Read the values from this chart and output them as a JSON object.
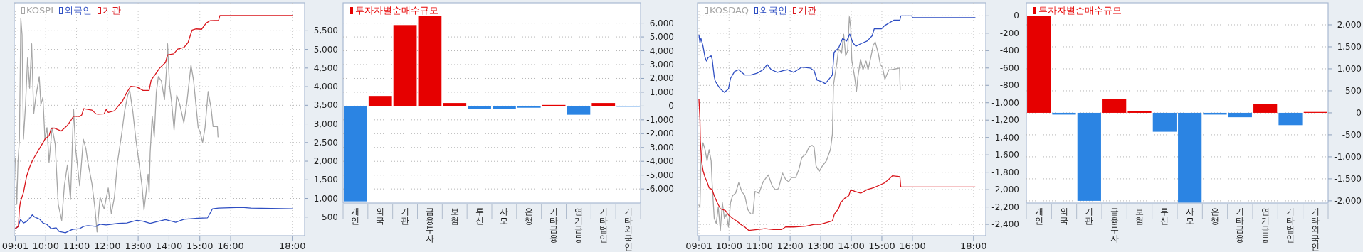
{
  "chart_data": [
    {
      "type": "line",
      "xlim": [
        8.98,
        18.4
      ],
      "ylim": [
        0,
        6250
      ],
      "grid": true,
      "legend": "top left",
      "xticks": [
        {
          "value": 9.0167,
          "label": "09:01"
        },
        {
          "value": 10,
          "label": "10:00"
        },
        {
          "value": 11,
          "label": "11:00"
        },
        {
          "value": 12,
          "label": "12:00"
        },
        {
          "value": 13,
          "label": "13:00"
        },
        {
          "value": 14,
          "label": "14:00"
        },
        {
          "value": 15,
          "label": "15:00"
        },
        {
          "value": 16,
          "label": "16:00"
        },
        {
          "value": 18,
          "label": "18:00"
        }
      ],
      "yticks": [
        500,
        {
          "value": 1000,
          "label": "1,000"
        },
        {
          "value": 1500,
          "label": "1,500"
        },
        {
          "value": 2000,
          "label": "2,000"
        },
        {
          "value": 2500,
          "label": "2,500"
        },
        {
          "value": 3000,
          "label": "3,000"
        },
        {
          "value": 3500,
          "label": "3,500"
        },
        {
          "value": 4000,
          "label": "4,000"
        },
        {
          "value": 4500,
          "label": "4,500"
        },
        {
          "value": 5000,
          "label": "5,000"
        },
        {
          "value": 5500,
          "label": "5,500"
        }
      ],
      "series": [
        {
          "name": "KOSPI",
          "color": "#a6a6a6",
          "x": [
            9.015,
            9.062,
            9.101,
            9.148,
            9.194,
            9.234,
            9.28,
            9.347,
            9.413,
            9.479,
            9.545,
            9.612,
            9.678,
            9.791,
            9.844,
            9.91,
            9.976,
            10.042,
            10.109,
            10.208,
            10.308,
            10.407,
            10.52,
            10.606,
            10.705,
            10.805,
            10.904,
            10.97,
            11.103,
            11.222,
            11.302,
            11.368,
            11.5,
            11.6,
            11.666,
            11.765,
            11.898,
            12.03,
            12.13,
            12.229,
            12.329,
            12.461,
            12.561,
            12.66,
            12.726,
            12.826,
            12.925,
            13.025,
            13.124,
            13.19,
            13.257,
            13.323,
            13.356,
            13.389,
            13.456,
            13.522,
            13.588,
            13.655,
            13.754,
            13.853,
            13.92,
            13.953,
            14.019,
            14.085,
            14.165,
            14.251,
            14.351,
            14.482,
            14.582,
            14.714,
            14.8,
            14.88,
            14.946,
            15.013,
            15.09,
            15.17,
            15.27,
            15.37,
            15.43,
            15.57,
            15.59
          ],
          "values": [
            2090,
            840,
            1970,
            2590,
            5830,
            5390,
            2590,
            3520,
            4770,
            3960,
            5150,
            3270,
            3710,
            4270,
            3520,
            3710,
            2590,
            2900,
            1970,
            2900,
            2460,
            840,
            410,
            1340,
            1900,
            970,
            3400,
            2340,
            1340,
            2590,
            2340,
            1970,
            1400,
            720,
            100,
            1030,
            720,
            1280,
            590,
            1030,
            1970,
            2710,
            3340,
            3770,
            3900,
            3340,
            2590,
            1970,
            1340,
            690,
            1160,
            1650,
            1160,
            2220,
            3210,
            2650,
            3840,
            4270,
            4150,
            3650,
            4460,
            5150,
            4020,
            3590,
            2840,
            3770,
            3520,
            3030,
            3590,
            4580,
            4150,
            3460,
            2900,
            2780,
            2500,
            2900,
            3870,
            3400,
            2930,
            2930,
            2650
          ]
        },
        {
          "name": "외국인",
          "color": "#2e4ec2",
          "x": [
            9.015,
            9.115,
            9.181,
            9.28,
            9.38,
            9.479,
            9.565,
            9.645,
            9.81,
            9.91,
            10.042,
            10.175,
            10.34,
            10.44,
            10.64,
            10.77,
            10.871,
            11.103,
            11.235,
            11.368,
            11.633,
            11.765,
            11.96,
            12.16,
            12.36,
            12.63,
            12.96,
            13.158,
            13.389,
            13.62,
            13.886,
            14.217,
            14.482,
            14.946,
            15.25,
            15.41,
            15.61,
            16.36,
            16.65,
            18.0
          ],
          "values": [
            190,
            250,
            440,
            340,
            380,
            470,
            560,
            500,
            440,
            340,
            300,
            190,
            210,
            110,
            80,
            130,
            170,
            190,
            250,
            270,
            250,
            310,
            290,
            310,
            330,
            340,
            410,
            390,
            330,
            380,
            430,
            360,
            440,
            470,
            480,
            720,
            740,
            760,
            740,
            720
          ]
        },
        {
          "name": "기관",
          "color": "#d9161c",
          "x": [
            9.015,
            9.115,
            9.148,
            9.181,
            9.28,
            9.38,
            9.479,
            9.578,
            9.711,
            9.843,
            9.976,
            10.109,
            10.175,
            10.274,
            10.506,
            10.705,
            10.838,
            10.904,
            11.103,
            11.169,
            11.236,
            11.501,
            11.633,
            11.7,
            11.898,
            11.964,
            12.031,
            12.229,
            12.362,
            12.495,
            12.627,
            12.76,
            12.959,
            13.157,
            13.356,
            13.423,
            13.555,
            13.688,
            13.887,
            13.953,
            14.152,
            14.285,
            14.483,
            14.616,
            14.749,
            14.881,
            15.056,
            15.21,
            15.33,
            15.61,
            15.65,
            18.0
          ],
          "values": [
            190,
            250,
            720,
            910,
            1160,
            1590,
            1840,
            2030,
            2220,
            2400,
            2590,
            2680,
            2870,
            2890,
            2810,
            2960,
            3120,
            3210,
            3200,
            3240,
            3410,
            3370,
            3270,
            3260,
            3270,
            3390,
            3310,
            3350,
            3490,
            3620,
            3840,
            4010,
            3990,
            3900,
            3900,
            4180,
            4330,
            4490,
            4650,
            4850,
            4880,
            5010,
            5050,
            5180,
            5520,
            5550,
            5540,
            5710,
            5770,
            5780,
            5910,
            5910
          ]
        }
      ]
    },
    {
      "type": "bar",
      "grid": "y",
      "legend": "top left",
      "ylim": [
        -7020,
        7470
      ],
      "yticks": [
        {
          "value": -6000,
          "label": "-6,000"
        },
        {
          "value": -5000,
          "label": "-5,000"
        },
        {
          "value": -4000,
          "label": "-4,000"
        },
        {
          "value": -3000,
          "label": "-3,000"
        },
        {
          "value": -2000,
          "label": "-2,000"
        },
        {
          "value": -1000,
          "label": "-1,000"
        },
        0,
        {
          "value": 1000,
          "label": "1,000"
        },
        {
          "value": 2000,
          "label": "2,000"
        },
        {
          "value": 3000,
          "label": "3,000"
        },
        {
          "value": 4000,
          "label": "4,000"
        },
        {
          "value": 5000,
          "label": "5,000"
        },
        {
          "value": 6000,
          "label": "6,000"
        }
      ],
      "categories": [
        "개인",
        "외국",
        "기관",
        "금융투자",
        "보험",
        "투신",
        "사모",
        "은행",
        "기타금융",
        "연기금등",
        "기타법인",
        "기타외국인"
      ],
      "series": [
        {
          "name": "투자자별순매수규모",
          "color": "#e60000",
          "values": [
            -6900,
            730,
            5860,
            6530,
            220,
            -200,
            -200,
            -120,
            80,
            -630,
            220,
            -50
          ],
          "colors": [
            "#2b84e3",
            "#e60000",
            "#e60000",
            "#e60000",
            "#e60000",
            "#2b84e3",
            "#2b84e3",
            "#2b84e3",
            "#e60000",
            "#2b84e3",
            "#e60000",
            "#2b84e3"
          ]
        }
      ]
    },
    {
      "type": "line",
      "xlim": [
        8.97,
        18.4
      ],
      "ylim": [
        -2530,
        150
      ],
      "grid": true,
      "legend": "top left",
      "xticks": [
        {
          "value": 9.017,
          "label": "09:01"
        },
        {
          "value": 10,
          "label": "10:00"
        },
        {
          "value": 11,
          "label": "11:00"
        },
        {
          "value": 12,
          "label": "12:00"
        },
        {
          "value": 13,
          "label": "13:00"
        },
        {
          "value": 14,
          "label": "14:00"
        },
        {
          "value": 15,
          "label": "15:00"
        },
        {
          "value": 16,
          "label": "16:00"
        },
        {
          "value": 18,
          "label": "18:00"
        }
      ],
      "yticks": [
        {
          "value": -2400,
          "label": "-2,400"
        },
        {
          "value": -2200,
          "label": "-2,200"
        },
        {
          "value": -2000,
          "label": "-2,000"
        },
        {
          "value": -1800,
          "label": "-1,800"
        },
        {
          "value": -1600,
          "label": "-1,600"
        },
        {
          "value": -1400,
          "label": "-1,400"
        },
        {
          "value": -1200,
          "label": "-1,200"
        },
        {
          "value": -1000,
          "label": "-1,000"
        },
        -800,
        -600,
        -400,
        -200,
        0
      ],
      "series": [
        {
          "name": "KOSDAQ",
          "color": "#a6a6a6",
          "x": [
            9.017,
            9.05,
            9.083,
            9.15,
            9.217,
            9.283,
            9.35,
            9.417,
            9.45,
            9.517,
            9.583,
            9.65,
            9.717,
            9.783,
            9.85,
            9.917,
            9.983,
            10.05,
            10.117,
            10.217,
            10.317,
            10.417,
            10.517,
            10.617,
            10.717,
            10.783,
            10.85,
            10.983,
            11.117,
            11.283,
            11.417,
            11.517,
            11.617,
            11.75,
            11.85,
            11.95,
            12.05,
            12.183,
            12.283,
            12.383,
            12.517,
            12.617,
            12.717,
            12.783,
            12.85,
            12.95,
            13.05,
            13.183,
            13.317,
            13.383,
            13.417,
            13.45,
            13.53,
            13.583,
            13.683,
            13.75,
            13.817,
            13.883,
            13.937,
            13.983,
            14.017,
            14.117,
            14.17,
            14.217,
            14.303,
            14.383,
            14.483,
            14.55,
            14.65,
            14.717,
            14.783,
            14.883,
            14.95,
            15.02,
            15.1,
            15.23,
            15.31,
            15.58,
            15.6
          ],
          "values": [
            -2180,
            -2200,
            -1670,
            -1460,
            -1540,
            -1670,
            -1540,
            -1670,
            -1940,
            -2330,
            -2390,
            -2200,
            -2470,
            -2150,
            -2330,
            -2280,
            -2430,
            -2150,
            -2070,
            -2040,
            -1920,
            -2020,
            -2070,
            -2230,
            -2280,
            -2280,
            -2020,
            -2040,
            -1910,
            -1830,
            -1960,
            -2000,
            -1990,
            -1810,
            -1880,
            -1910,
            -1860,
            -1860,
            -1770,
            -1630,
            -1590,
            -1510,
            -1490,
            -1510,
            -1730,
            -1790,
            -1730,
            -1670,
            -1540,
            -1360,
            -800,
            -720,
            -540,
            -380,
            -430,
            -210,
            -460,
            -400,
            -10,
            -140,
            -510,
            -720,
            -870,
            -700,
            -500,
            -620,
            -520,
            -620,
            -460,
            -340,
            -300,
            -430,
            -560,
            -590,
            -730,
            -620,
            -620,
            -600,
            -850
          ]
        },
        {
          "name": "외국인",
          "color": "#2e4ec2",
          "x": [
            9.017,
            9.05,
            9.083,
            9.15,
            9.217,
            9.263,
            9.317,
            9.417,
            9.45,
            9.517,
            9.55,
            9.617,
            9.717,
            9.85,
            9.983,
            10.05,
            10.183,
            10.317,
            10.517,
            10.717,
            10.917,
            11.117,
            11.25,
            11.383,
            11.583,
            11.783,
            11.917,
            12.117,
            12.25,
            12.383,
            12.65,
            12.783,
            12.883,
            13.05,
            13.15,
            13.383,
            13.437,
            13.583,
            13.717,
            13.85,
            13.95,
            14.05,
            14.15,
            14.317,
            14.517,
            14.683,
            14.75,
            14.983,
            15.1,
            15.39,
            15.59,
            15.62,
            15.98,
            16.0,
            18.05
          ],
          "values": [
            -220,
            -310,
            -260,
            -350,
            -480,
            -520,
            -480,
            -460,
            -500,
            -700,
            -750,
            -790,
            -840,
            -880,
            -840,
            -720,
            -640,
            -620,
            -680,
            -680,
            -660,
            -620,
            -560,
            -620,
            -650,
            -630,
            -620,
            -650,
            -620,
            -590,
            -600,
            -630,
            -740,
            -760,
            -780,
            -680,
            -420,
            -370,
            -260,
            -290,
            -210,
            -310,
            -350,
            -320,
            -290,
            -230,
            -150,
            -150,
            -110,
            -50,
            -50,
            0,
            0,
            -20,
            -20
          ]
        },
        {
          "name": "기관",
          "color": "#d9161c",
          "x": [
            9.017,
            9.05,
            9.063,
            9.103,
            9.15,
            9.217,
            9.283,
            9.35,
            9.45,
            9.517,
            9.617,
            9.717,
            9.883,
            9.983,
            10.117,
            10.25,
            10.383,
            10.517,
            10.65,
            10.917,
            11.183,
            11.45,
            11.717,
            11.85,
            12.117,
            12.517,
            12.783,
            12.983,
            13.183,
            13.383,
            13.45,
            13.583,
            13.65,
            13.783,
            13.917,
            13.983,
            14.117,
            14.317,
            14.517,
            14.717,
            14.917,
            15.1,
            15.23,
            15.35,
            15.59,
            15.62,
            18.05
          ],
          "values": [
            -960,
            -1200,
            -1440,
            -1670,
            -1780,
            -1860,
            -1910,
            -1980,
            -2000,
            -2070,
            -2150,
            -2220,
            -2240,
            -2290,
            -2330,
            -2360,
            -2400,
            -2430,
            -2470,
            -2460,
            -2450,
            -2460,
            -2460,
            -2430,
            -2430,
            -2420,
            -2400,
            -2400,
            -2380,
            -2360,
            -2280,
            -2220,
            -2150,
            -2100,
            -2070,
            -2000,
            -2020,
            -2040,
            -2000,
            -1980,
            -1950,
            -1920,
            -1880,
            -1840,
            -1850,
            -1970,
            -1970
          ]
        }
      ]
    },
    {
      "type": "bar",
      "grid": "y",
      "legend": "top left",
      "ylim": [
        -2050,
        2500
      ],
      "yticks": [
        {
          "value": -2000,
          "label": "-2,000"
        },
        {
          "value": -1500,
          "label": "-1,500"
        },
        {
          "value": -1000,
          "label": "-1,000"
        },
        -500,
        0,
        500,
        {
          "value": 1000,
          "label": "1,000"
        },
        {
          "value": 1500,
          "label": "1,500"
        },
        {
          "value": 2000,
          "label": "2,000"
        }
      ],
      "categories": [
        "개인",
        "외국",
        "기관",
        "금융투자",
        "보험",
        "투신",
        "사모",
        "은행",
        "기타금융",
        "연기금등",
        "기타법인",
        "기타외국인"
      ],
      "series": [
        {
          "name": "투자자별순매수규모",
          "color": "#e60000",
          "values": [
            2200,
            -40,
            -2000,
            310,
            40,
            -430,
            -2040,
            -40,
            -100,
            200,
            -280,
            20
          ],
          "colors": [
            "#e60000",
            "#2b84e3",
            "#2b84e3",
            "#e60000",
            "#e60000",
            "#2b84e3",
            "#2b84e3",
            "#2b84e3",
            "#2b84e3",
            "#e60000",
            "#2b84e3",
            "#e60000"
          ]
        }
      ]
    }
  ]
}
